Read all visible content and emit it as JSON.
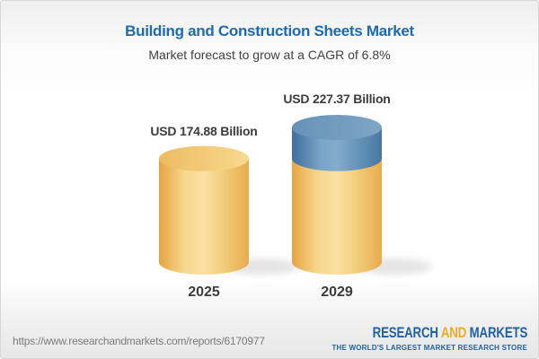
{
  "header": {
    "title": "Building and Construction Sheets Market",
    "subtitle": "Market forecast to grow at a CAGR of 6.8%"
  },
  "chart_data": {
    "type": "bar",
    "subtype": "3d-cylinder",
    "categories": [
      "2025",
      "2029"
    ],
    "values": [
      174.88,
      227.37
    ],
    "unit": "USD Billion",
    "value_labels": [
      "USD 174.88 Billion",
      "USD 227.37 Billion"
    ],
    "cagr_percent": 6.8,
    "legend": "none",
    "axes": "none",
    "notes": "Second cylinder shows 2025 base in yellow with growth-to-2029 cap in blue",
    "colors": {
      "base_segment_yellow": "#F3CD7B",
      "growth_segment_blue": "#5E8DB5"
    }
  },
  "footer": {
    "url": "https://www.researchandmarkets.com/reports/6170977",
    "logo_text_1": "RESEARCH",
    "logo_text_2": "AND",
    "logo_text_3": "MARKETS",
    "logo_tagline": "THE WORLD'S LARGEST MARKET RESEARCH STORE"
  },
  "colors": {
    "title_blue": "#1E6AAE",
    "text_dark": "#3C3C3C",
    "subtitle_gray": "#414141",
    "url_gray": "#7B7B7B",
    "logo_blue": "#2161A2",
    "logo_gold": "#EFAA2B",
    "background_top": "#EFEFEF",
    "background_bottom": "#E7E7E7"
  }
}
